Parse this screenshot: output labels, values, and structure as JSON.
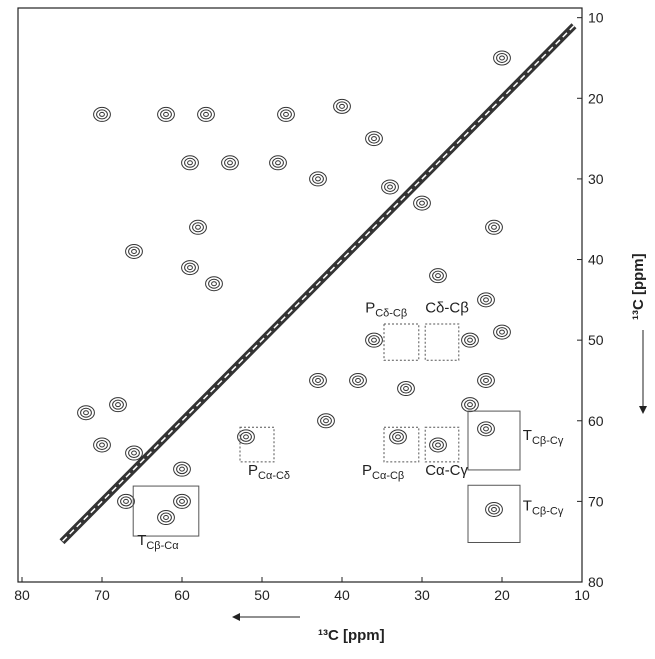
{
  "chart_data": {
    "type": "nmr-2d",
    "x_label": "¹³C [ppm]",
    "y_label": "¹³C [ppm]",
    "xlim": [
      80.5,
      10
    ],
    "ylim": [
      8.8,
      80
    ],
    "xticks": [
      80,
      70,
      60,
      50,
      40,
      30,
      20,
      10
    ],
    "yticks": [
      10,
      20,
      30,
      40,
      50,
      60,
      70,
      80
    ],
    "color": "#333333",
    "diagonal": {
      "x": [
        11,
        75
      ],
      "y": [
        11,
        75
      ]
    },
    "peaks": {
      "x": [
        70,
        62,
        57,
        47,
        40,
        59,
        54,
        48,
        43,
        34,
        30,
        58,
        59,
        56,
        21,
        22,
        28,
        20,
        24,
        36,
        38,
        32,
        22,
        24,
        43,
        42,
        33,
        28,
        22,
        21,
        62,
        67,
        60,
        72,
        68,
        70,
        66,
        60,
        52,
        20,
        36,
        66
      ],
      "y": [
        22,
        22,
        22,
        22,
        21,
        28,
        28,
        28,
        30,
        31,
        33,
        36,
        41,
        43,
        36,
        45,
        42,
        49,
        50,
        50,
        55,
        56,
        55,
        58,
        55,
        60,
        62,
        63,
        61,
        71,
        72,
        70,
        70,
        59,
        58,
        63,
        64,
        66,
        62,
        15,
        25,
        39
      ]
    },
    "boxes": [
      {
        "x": [
          34.75,
          30.4
        ],
        "y": [
          48,
          52.5
        ],
        "style": "dashed"
      },
      {
        "x": [
          29.6,
          25.4
        ],
        "y": [
          48,
          52.5
        ],
        "style": "dashed"
      },
      {
        "x": [
          52.75,
          48.5
        ],
        "y": [
          60.8,
          65.1
        ],
        "style": "dashed"
      },
      {
        "x": [
          34.75,
          30.4
        ],
        "y": [
          60.8,
          65.1
        ],
        "style": "dashed"
      },
      {
        "x": [
          29.6,
          25.4
        ],
        "y": [
          60.8,
          65.1
        ],
        "style": "dashed"
      },
      {
        "x": [
          24.25,
          17.75
        ],
        "y": [
          58.8,
          66.1
        ],
        "style": "solid"
      },
      {
        "x": [
          24.25,
          17.75
        ],
        "y": [
          68,
          75.1
        ],
        "style": "solid"
      },
      {
        "x": [
          66.1,
          57.9
        ],
        "y": [
          68.1,
          74.3
        ],
        "style": "solid"
      }
    ],
    "annotations": [
      {
        "text": "P",
        "sub": "Cδ-Cβ",
        "x": 37.1,
        "y": 46.6
      },
      {
        "text": "Cδ-Cβ",
        "x": 29.6,
        "y": 46.6
      },
      {
        "text": "P",
        "sub": "Cα-Cδ",
        "x": 51.75,
        "y": 66.7
      },
      {
        "text": "P",
        "sub": "Cα-Cβ",
        "x": 37.5,
        "y": 66.7
      },
      {
        "text": "Cα-Cγ",
        "x": 29.6,
        "y": 66.7
      },
      {
        "text": "T",
        "sub": "Cβ-Cγ",
        "x": 17.4,
        "y": 62.4
      },
      {
        "text": "T",
        "sub": "Cβ-Cγ",
        "x": 17.4,
        "y": 71.1
      },
      {
        "text": "T",
        "sub": "Cβ-Cα",
        "x": 65.6,
        "y": 75.4
      }
    ]
  }
}
